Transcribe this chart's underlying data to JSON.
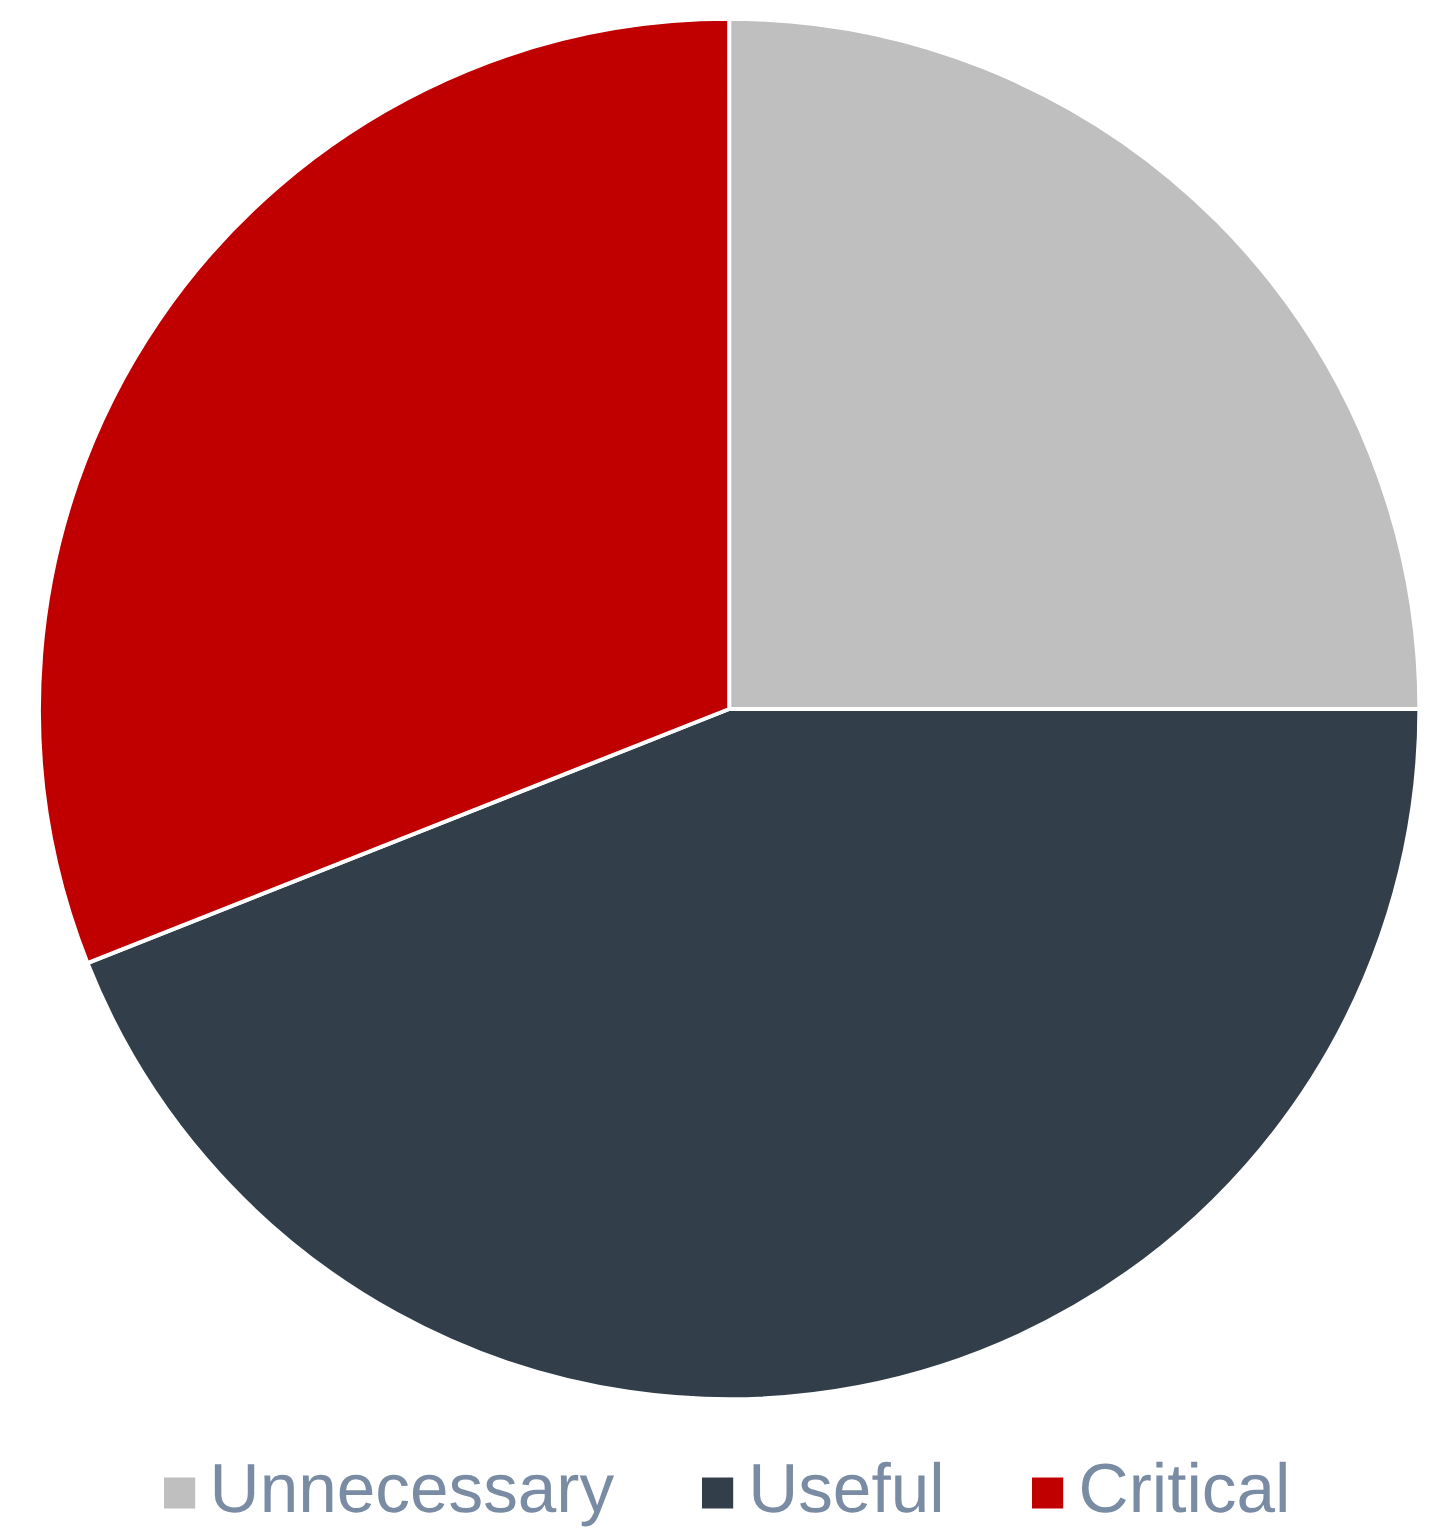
{
  "chart_data": {
    "type": "pie",
    "categories": [
      "Unnecessary",
      "Useful",
      "Critical"
    ],
    "values": [
      25,
      44,
      31
    ],
    "colors": [
      "#bfbfbf",
      "#323f4a",
      "#c00000"
    ],
    "legend": "bottom"
  }
}
